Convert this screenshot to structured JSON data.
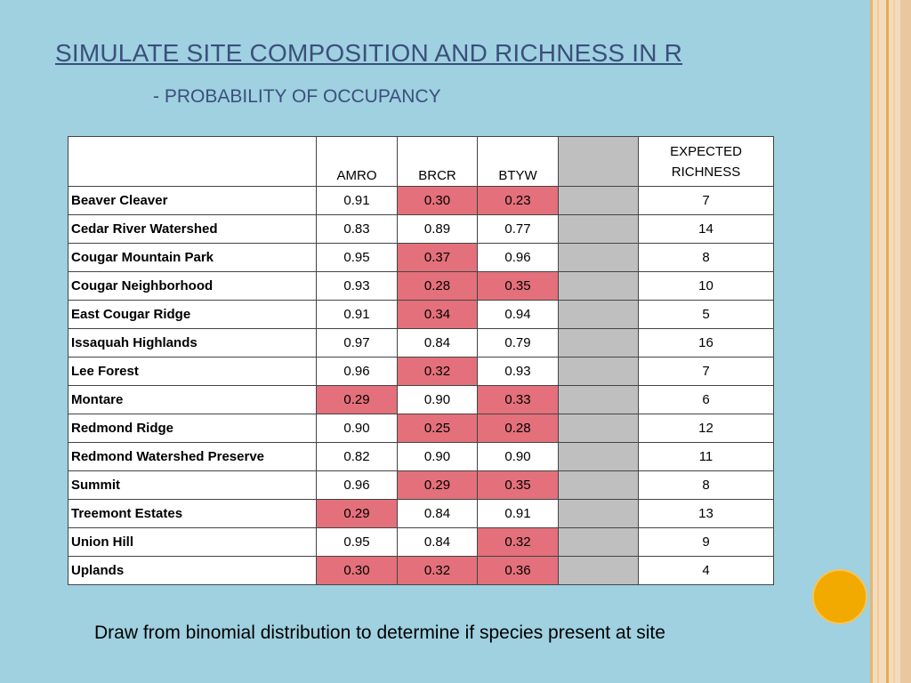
{
  "slide": {
    "title": "SIMULATE SITE COMPOSITION AND RICHNESS IN R",
    "subtitle": "- PROBABILITY OF OCCUPANCY",
    "caption": "Draw from binomial distribution to determine if species present at site"
  },
  "colors": {
    "background": "#9fd1e0",
    "title": "#3b4f7c",
    "highlight_low": "#e3707a",
    "blank_column": "#bfbfbf",
    "accent_dot": "#f2a900"
  },
  "table": {
    "headers": {
      "site": "",
      "amro": "AMRO",
      "brcr": "BRCR",
      "btyw": "BTYW",
      "blank": "",
      "richness_line1": "EXPECTED",
      "richness_line2": "RICHNESS"
    },
    "rows": [
      {
        "site": "Beaver Cleaver",
        "amro": "0.91",
        "brcr": "0.30",
        "btyw": "0.23",
        "richness": "7"
      },
      {
        "site": "Cedar River Watershed",
        "amro": "0.83",
        "brcr": "0.89",
        "btyw": "0.77",
        "richness": "14"
      },
      {
        "site": "Cougar Mountain Park",
        "amro": "0.95",
        "brcr": "0.37",
        "btyw": "0.96",
        "richness": "8"
      },
      {
        "site": "Cougar Neighborhood",
        "amro": "0.93",
        "brcr": "0.28",
        "btyw": "0.35",
        "richness": "10"
      },
      {
        "site": "East Cougar Ridge",
        "amro": "0.91",
        "brcr": "0.34",
        "btyw": "0.94",
        "richness": "5"
      },
      {
        "site": "Issaquah Highlands",
        "amro": "0.97",
        "brcr": "0.84",
        "btyw": "0.79",
        "richness": "16"
      },
      {
        "site": "Lee Forest",
        "amro": "0.96",
        "brcr": "0.32",
        "btyw": "0.93",
        "richness": "7"
      },
      {
        "site": "Montare",
        "amro": "0.29",
        "brcr": "0.90",
        "btyw": "0.33",
        "richness": "6"
      },
      {
        "site": "Redmond Ridge",
        "amro": "0.90",
        "brcr": "0.25",
        "btyw": "0.28",
        "richness": "12"
      },
      {
        "site": "Redmond Watershed Preserve",
        "amro": "0.82",
        "brcr": "0.90",
        "btyw": "0.90",
        "richness": "11"
      },
      {
        "site": "Summit",
        "amro": "0.96",
        "brcr": "0.29",
        "btyw": "0.35",
        "richness": "8"
      },
      {
        "site": "Treemont Estates",
        "amro": "0.29",
        "brcr": "0.84",
        "btyw": "0.91",
        "richness": "13"
      },
      {
        "site": "Union Hill",
        "amro": "0.95",
        "brcr": "0.84",
        "btyw": "0.32",
        "richness": "9"
      },
      {
        "site": "Uplands",
        "amro": "0.30",
        "brcr": "0.32",
        "btyw": "0.36",
        "richness": "4"
      }
    ]
  }
}
